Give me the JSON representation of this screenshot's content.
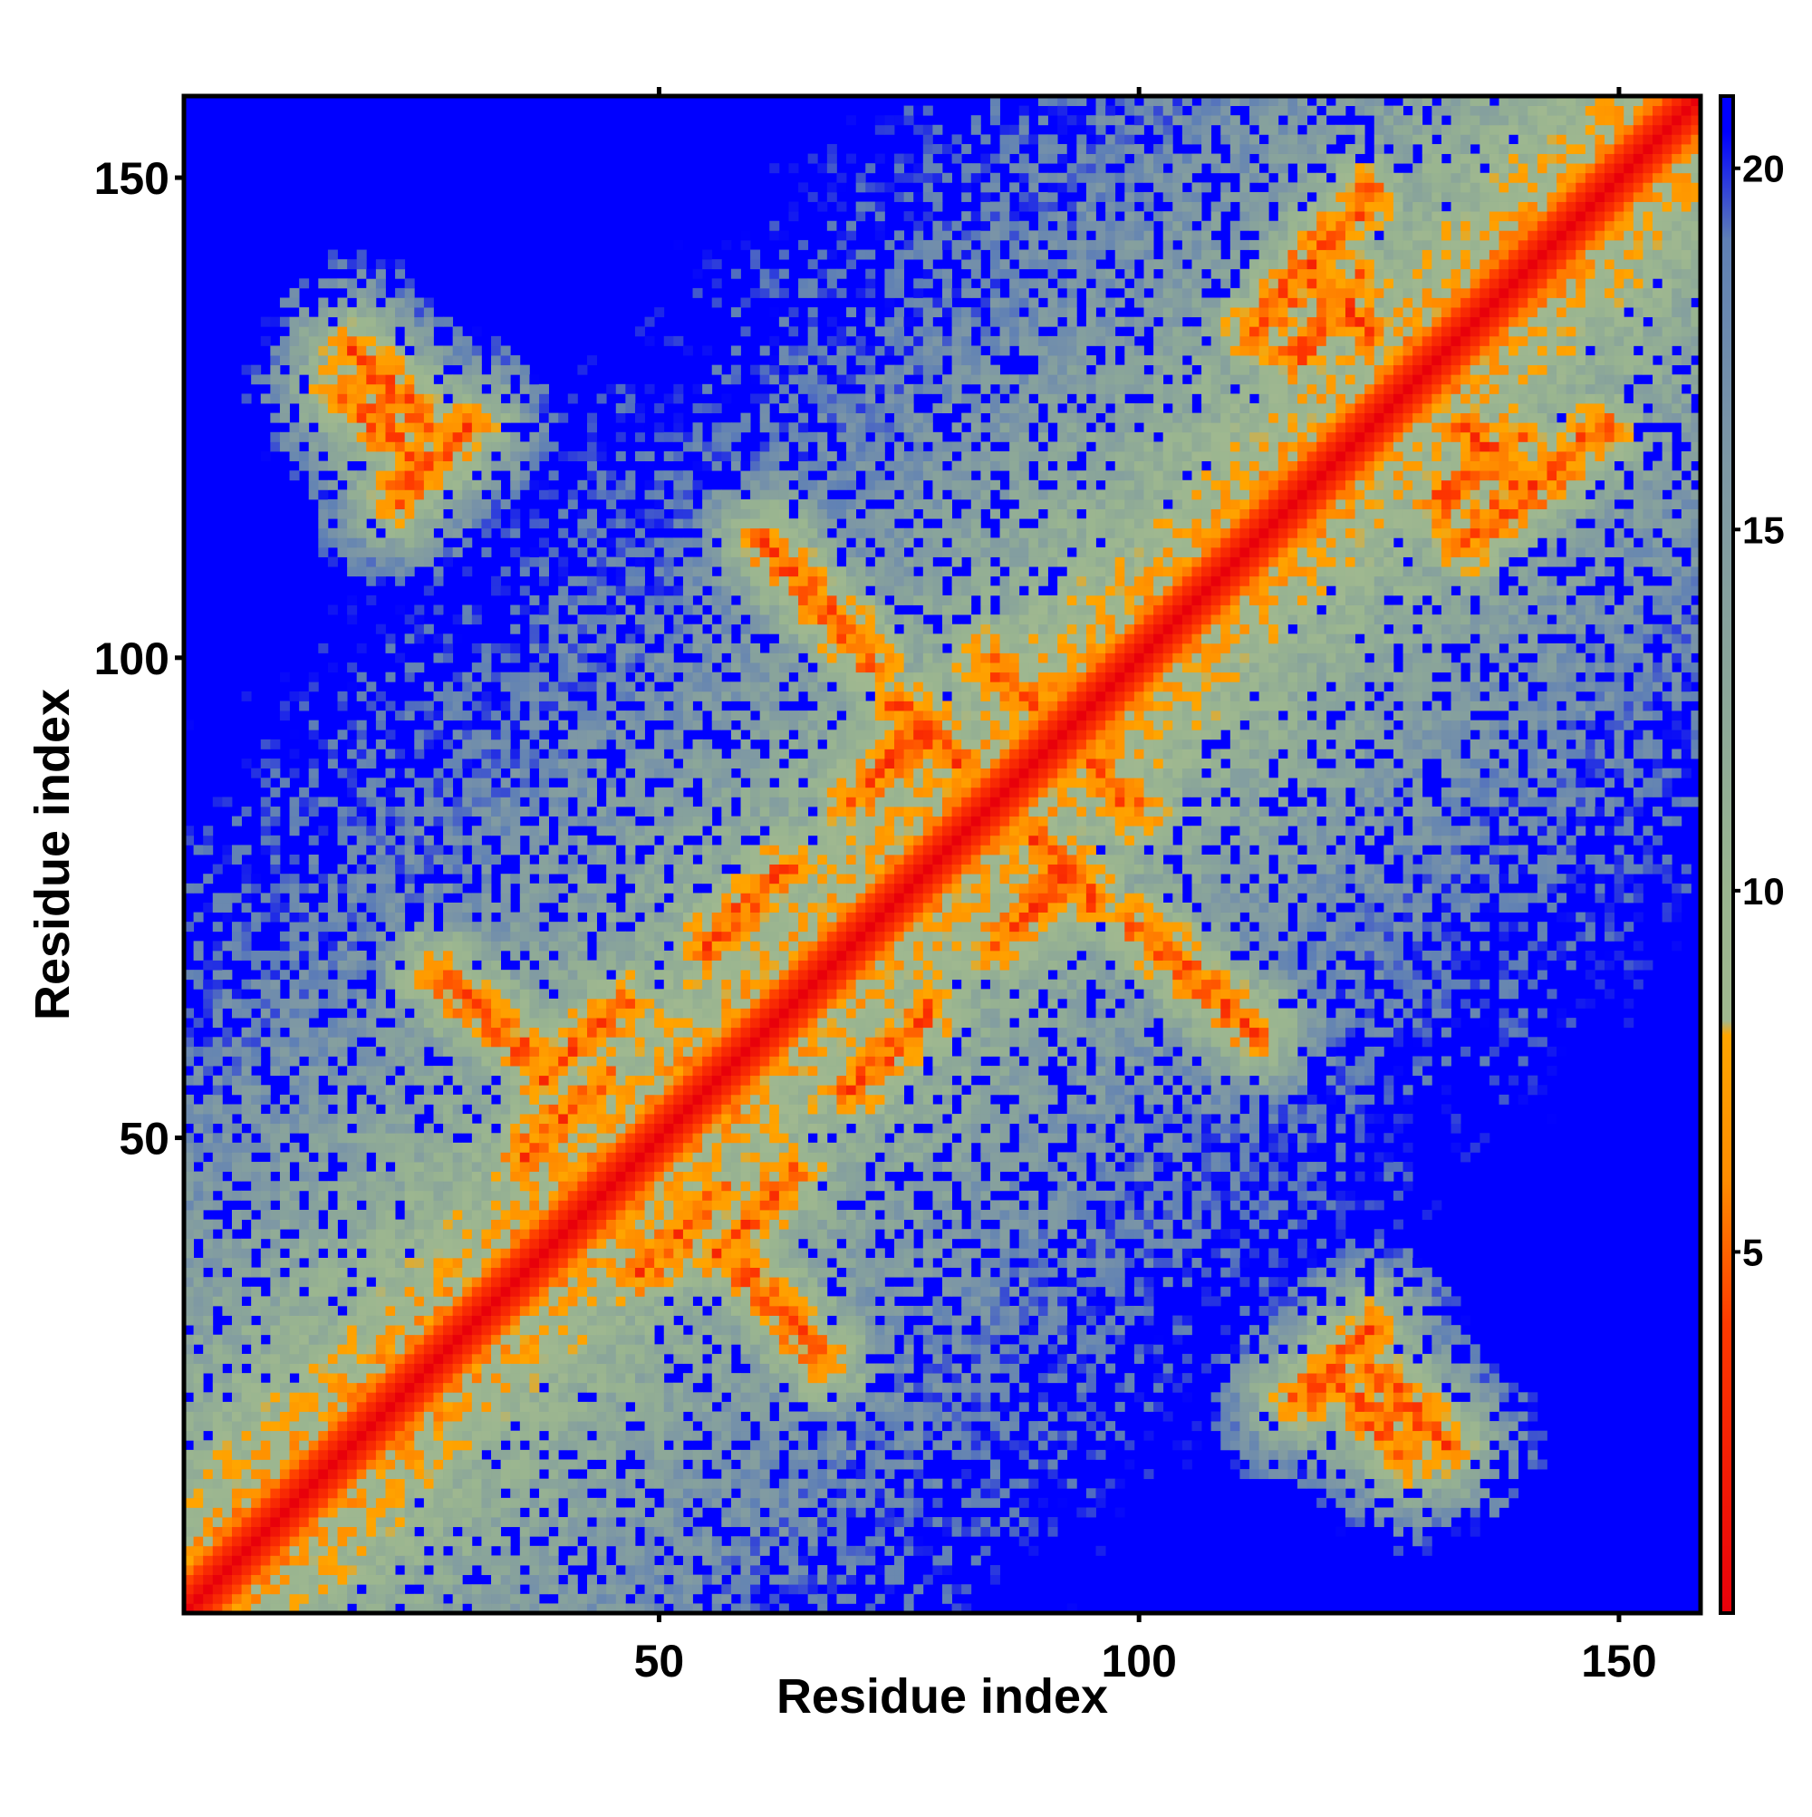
{
  "chart_data": {
    "type": "heatmap",
    "title": "",
    "xlabel": "Residue index",
    "ylabel": "Residue index",
    "n_residues": 158,
    "xlim": [
      1,
      158
    ],
    "ylim": [
      1,
      158
    ],
    "x_ticks": [
      50,
      100,
      150
    ],
    "y_ticks": [
      50,
      100,
      150
    ],
    "colorbar": {
      "ticks": [
        5,
        10,
        15,
        20
      ],
      "range": [
        0,
        21
      ],
      "stops": [
        {
          "value": 0,
          "color": "#e8000a"
        },
        {
          "value": 4,
          "color": "#ff3a00"
        },
        {
          "value": 6,
          "color": "#ff8c00"
        },
        {
          "value": 8,
          "color": "#ffa500"
        },
        {
          "value": 8.2,
          "color": "#a0b890"
        },
        {
          "value": 10,
          "color": "#9ab590"
        },
        {
          "value": 13,
          "color": "#8aa59a"
        },
        {
          "value": 16,
          "color": "#7d97a5"
        },
        {
          "value": 19,
          "color": "#5f80b5"
        },
        {
          "value": 20.5,
          "color": "#0000ff"
        }
      ]
    },
    "colors": {
      "far": "#0000ff",
      "near": "#e8000a",
      "contact": "#ff9900",
      "mid": "#9db590"
    },
    "notes": "Symmetric residue-residue distance map; diagonal near 0, background (>20) blue.",
    "contact_features": [
      {
        "kind": "antiparallel",
        "a": [
          18,
          26
        ],
        "b": [
          124,
          132
        ],
        "width": 2
      },
      {
        "kind": "antiparallel",
        "a": [
          61,
          72
        ],
        "b": [
          100,
          112
        ],
        "width": 2
      },
      {
        "kind": "antiparallel",
        "a": [
          84,
          93
        ],
        "b": [
          92,
          100
        ],
        "width": 2
      },
      {
        "kind": "antiparallel",
        "a": [
          27,
          36
        ],
        "b": [
          59,
          67
        ],
        "width": 2
      },
      {
        "kind": "antiparallel",
        "a": [
          17,
          25
        ],
        "b": [
          120,
          128
        ],
        "width": 2
      },
      {
        "kind": "antiparallel",
        "a": [
          117,
          124
        ],
        "b": [
          134,
          141
        ],
        "width": 2
      },
      {
        "kind": "parallel",
        "a": [
          36,
          44
        ],
        "b": [
          48,
          56
        ],
        "width": 2
      },
      {
        "kind": "parallel",
        "a": [
          23,
          30
        ],
        "b": [
          117,
          124
        ],
        "width": 2
      },
      {
        "kind": "parallel",
        "a": [
          38,
          46
        ],
        "b": [
          56,
          64
        ],
        "width": 2
      },
      {
        "kind": "parallel",
        "a": [
          55,
          63
        ],
        "b": [
          70,
          78
        ],
        "width": 2
      },
      {
        "kind": "parallel",
        "a": [
          70,
          78
        ],
        "b": [
          85,
          93
        ],
        "width": 2
      },
      {
        "kind": "antiparallel",
        "a": [
          75,
          82
        ],
        "b": [
          88,
          95
        ],
        "width": 2
      },
      {
        "kind": "parallel",
        "a": [
          116,
          123
        ],
        "b": [
          131,
          139
        ],
        "width": 2
      },
      {
        "kind": "parallel",
        "a": [
          112,
          118
        ],
        "b": [
          134,
          141
        ],
        "width": 2
      },
      {
        "kind": "parallel",
        "a": [
          118,
          124
        ],
        "b": [
          142,
          148
        ],
        "width": 2
      }
    ]
  }
}
